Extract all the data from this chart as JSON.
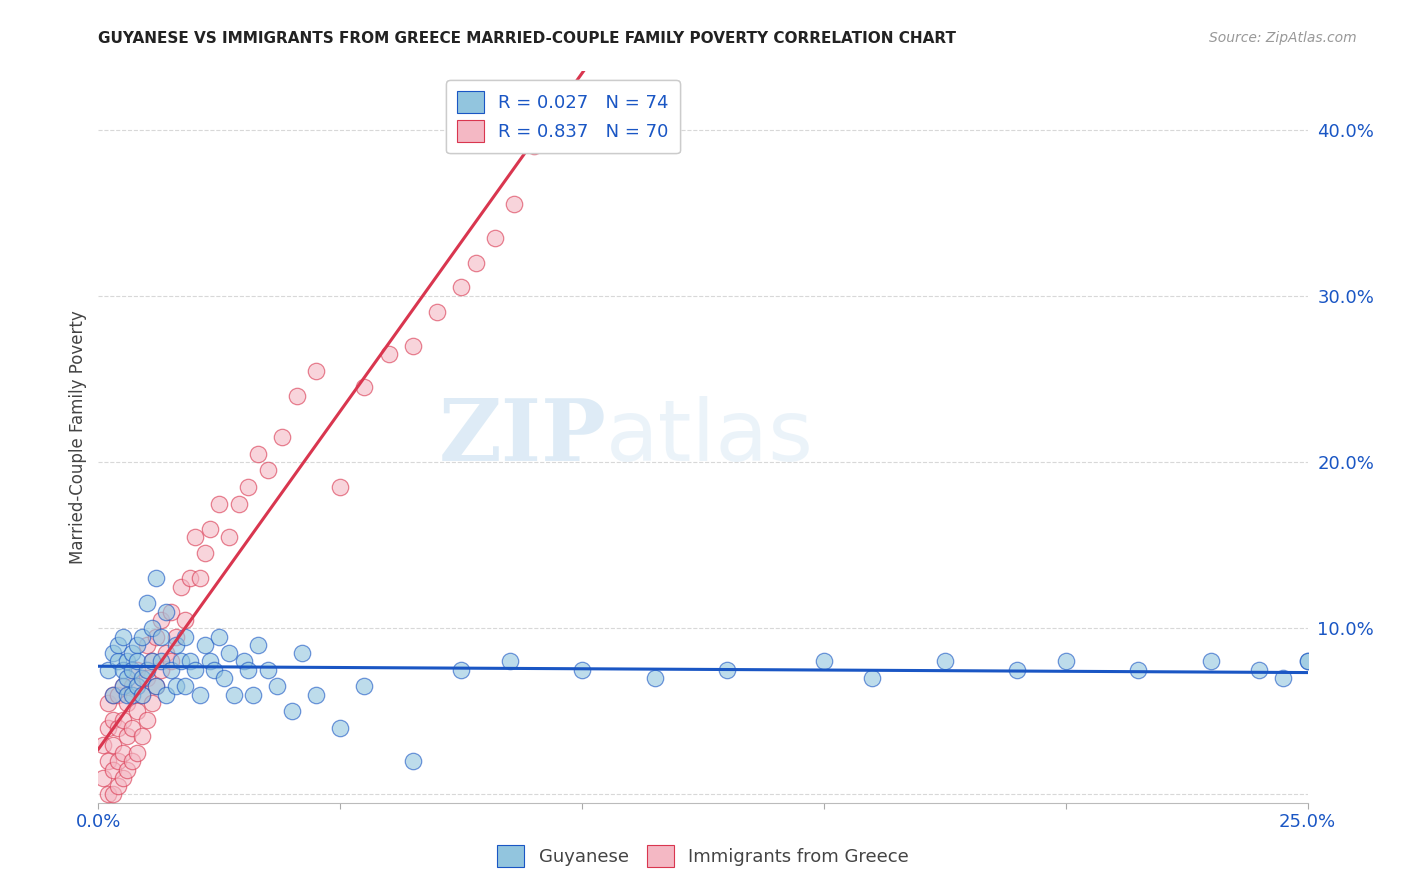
{
  "title": "GUYANESE VS IMMIGRANTS FROM GREECE MARRIED-COUPLE FAMILY POVERTY CORRELATION CHART",
  "source": "Source: ZipAtlas.com",
  "xlabel_blue": "Guyanese",
  "xlabel_pink": "Immigrants from Greece",
  "ylabel": "Married-Couple Family Poverty",
  "xlim": [
    0.0,
    0.25
  ],
  "ylim": [
    -0.005,
    0.435
  ],
  "yticks": [
    0.0,
    0.1,
    0.2,
    0.3,
    0.4
  ],
  "xticks": [
    0.0,
    0.05,
    0.1,
    0.15,
    0.2,
    0.25
  ],
  "blue_color": "#92c5de",
  "pink_color": "#f4b8c4",
  "blue_line_color": "#1a56c4",
  "pink_line_color": "#d9364f",
  "blue_R": 0.027,
  "blue_N": 74,
  "pink_R": 0.837,
  "pink_N": 70,
  "watermark_zip": "ZIP",
  "watermark_atlas": "atlas",
  "background_color": "#ffffff",
  "grid_color": "#d8d8d8",
  "blue_scatter_x": [
    0.002,
    0.003,
    0.003,
    0.004,
    0.004,
    0.005,
    0.005,
    0.005,
    0.006,
    0.006,
    0.006,
    0.007,
    0.007,
    0.007,
    0.008,
    0.008,
    0.008,
    0.009,
    0.009,
    0.009,
    0.01,
    0.01,
    0.011,
    0.011,
    0.012,
    0.012,
    0.013,
    0.013,
    0.014,
    0.014,
    0.015,
    0.016,
    0.016,
    0.017,
    0.018,
    0.018,
    0.019,
    0.02,
    0.021,
    0.022,
    0.023,
    0.024,
    0.025,
    0.026,
    0.027,
    0.028,
    0.03,
    0.031,
    0.032,
    0.033,
    0.035,
    0.037,
    0.04,
    0.042,
    0.045,
    0.05,
    0.055,
    0.065,
    0.075,
    0.085,
    0.1,
    0.115,
    0.13,
    0.15,
    0.16,
    0.175,
    0.19,
    0.2,
    0.215,
    0.23,
    0.24,
    0.245,
    0.25,
    0.25
  ],
  "blue_scatter_y": [
    0.075,
    0.085,
    0.06,
    0.08,
    0.09,
    0.065,
    0.075,
    0.095,
    0.06,
    0.08,
    0.07,
    0.085,
    0.06,
    0.075,
    0.09,
    0.065,
    0.08,
    0.07,
    0.095,
    0.06,
    0.075,
    0.115,
    0.08,
    0.1,
    0.065,
    0.13,
    0.08,
    0.095,
    0.06,
    0.11,
    0.075,
    0.065,
    0.09,
    0.08,
    0.095,
    0.065,
    0.08,
    0.075,
    0.06,
    0.09,
    0.08,
    0.075,
    0.095,
    0.07,
    0.085,
    0.06,
    0.08,
    0.075,
    0.06,
    0.09,
    0.075,
    0.065,
    0.05,
    0.085,
    0.06,
    0.04,
    0.065,
    0.02,
    0.075,
    0.08,
    0.075,
    0.07,
    0.075,
    0.08,
    0.07,
    0.08,
    0.075,
    0.08,
    0.075,
    0.08,
    0.075,
    0.07,
    0.08,
    0.08
  ],
  "pink_scatter_x": [
    0.001,
    0.001,
    0.002,
    0.002,
    0.002,
    0.002,
    0.003,
    0.003,
    0.003,
    0.003,
    0.003,
    0.004,
    0.004,
    0.004,
    0.004,
    0.005,
    0.005,
    0.005,
    0.005,
    0.006,
    0.006,
    0.006,
    0.007,
    0.007,
    0.007,
    0.008,
    0.008,
    0.008,
    0.009,
    0.009,
    0.01,
    0.01,
    0.01,
    0.011,
    0.011,
    0.012,
    0.012,
    0.013,
    0.013,
    0.014,
    0.015,
    0.015,
    0.016,
    0.017,
    0.018,
    0.019,
    0.02,
    0.021,
    0.022,
    0.023,
    0.025,
    0.027,
    0.029,
    0.031,
    0.033,
    0.035,
    0.038,
    0.041,
    0.045,
    0.05,
    0.055,
    0.06,
    0.065,
    0.07,
    0.075,
    0.078,
    0.082,
    0.086,
    0.09,
    0.09
  ],
  "pink_scatter_y": [
    0.01,
    0.03,
    0.0,
    0.02,
    0.04,
    0.055,
    0.0,
    0.015,
    0.03,
    0.045,
    0.06,
    0.005,
    0.02,
    0.04,
    0.06,
    0.01,
    0.025,
    0.045,
    0.065,
    0.015,
    0.035,
    0.055,
    0.02,
    0.04,
    0.065,
    0.025,
    0.05,
    0.075,
    0.035,
    0.06,
    0.045,
    0.07,
    0.09,
    0.055,
    0.08,
    0.065,
    0.095,
    0.075,
    0.105,
    0.085,
    0.08,
    0.11,
    0.095,
    0.125,
    0.105,
    0.13,
    0.155,
    0.13,
    0.145,
    0.16,
    0.175,
    0.155,
    0.175,
    0.185,
    0.205,
    0.195,
    0.215,
    0.24,
    0.255,
    0.185,
    0.245,
    0.265,
    0.27,
    0.29,
    0.305,
    0.32,
    0.335,
    0.355,
    0.39,
    0.4
  ]
}
